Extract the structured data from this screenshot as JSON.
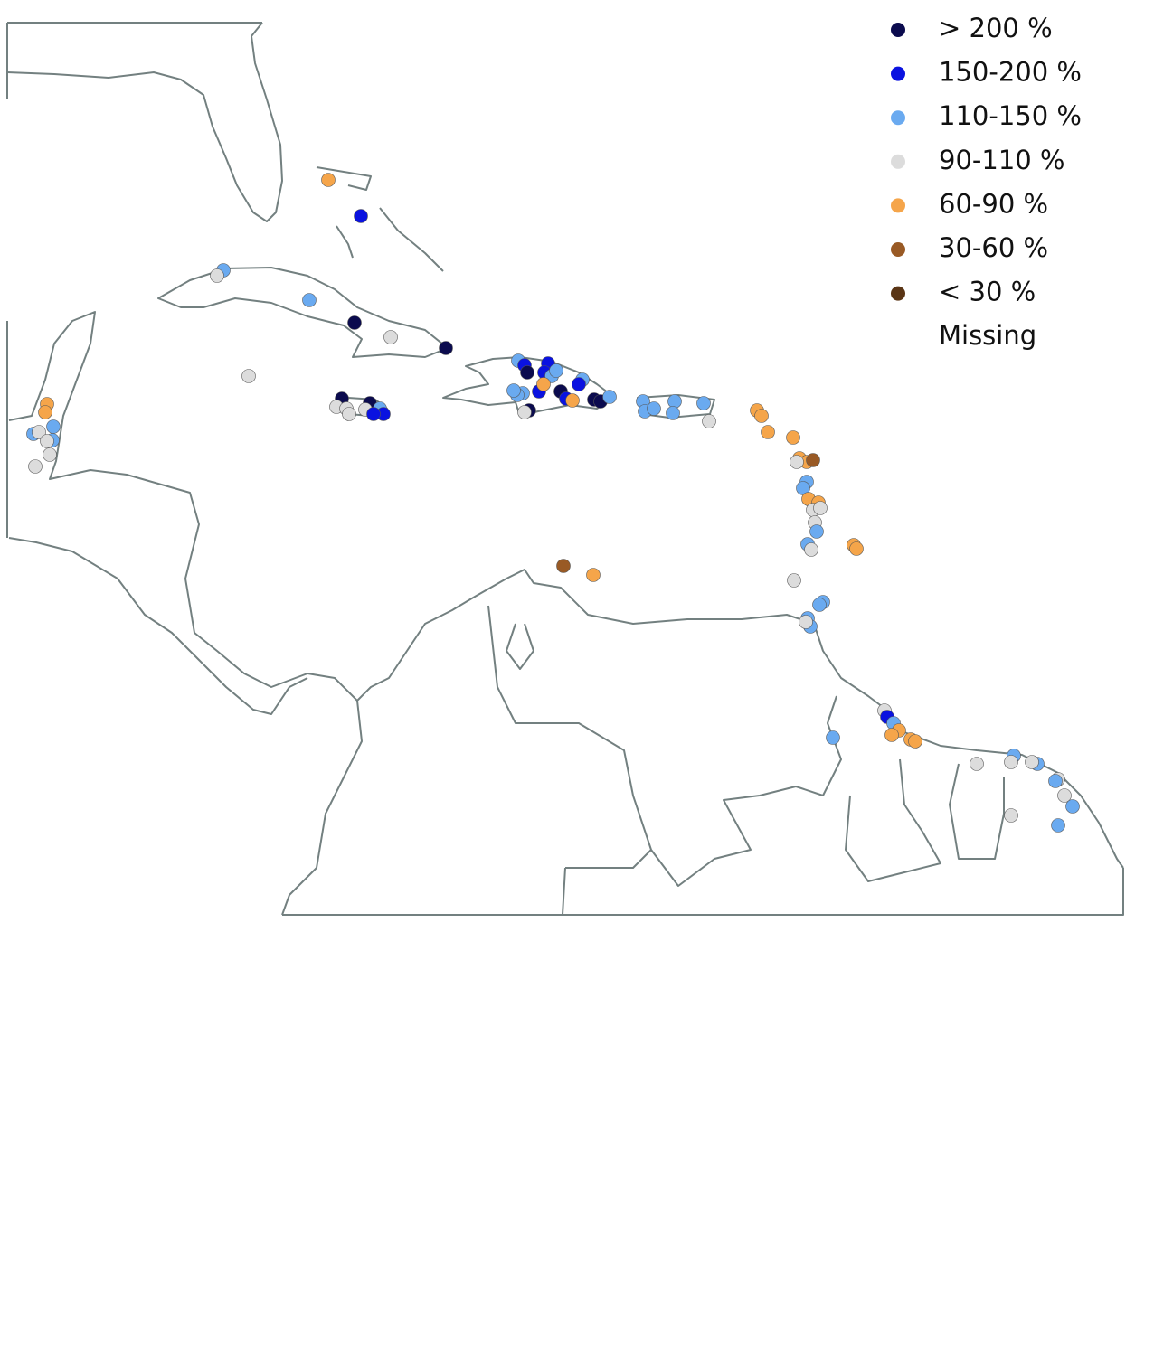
{
  "legend": {
    "items": [
      {
        "label": "> 200 %",
        "color": "#0b0b4e"
      },
      {
        "label": "150-200 %",
        "color": "#0a12e0"
      },
      {
        "label": "110-150 %",
        "color": "#6aaaf0"
      },
      {
        "label": "90-110 %",
        "color": "#dcdcdc"
      },
      {
        "label": "60-90 %",
        "color": "#f5a54a"
      },
      {
        "label": "30-60 %",
        "color": "#995a25"
      },
      {
        "label": "< 30  %",
        "color": "#5a3515"
      },
      {
        "label": "Missing"
      }
    ]
  }
}
